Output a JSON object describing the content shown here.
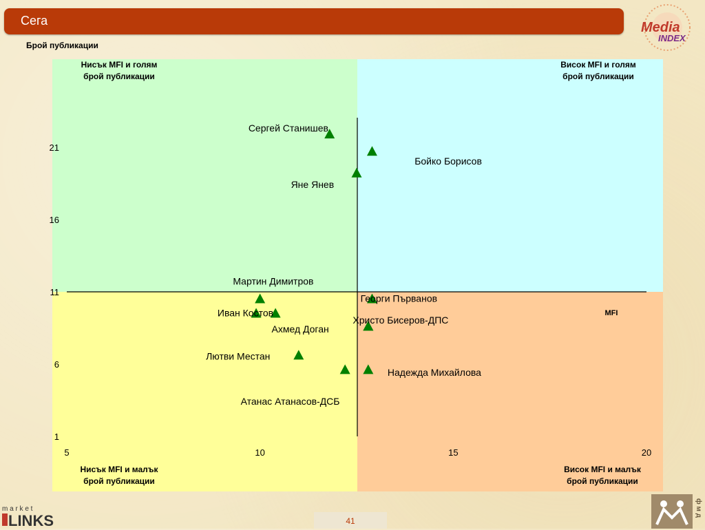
{
  "header": {
    "title": "Сега"
  },
  "axis_title": "Брой публикации",
  "quadrants": {
    "top_left": [
      "Нисък MFI и голям",
      "брой публикации"
    ],
    "top_right": [
      "Висок MFI и голям",
      "брой публикации"
    ],
    "bottom_left": [
      "Нисък MFI и малък",
      "брой публикации"
    ],
    "bottom_right": [
      "Висок MFI и малък",
      "брой публикации"
    ]
  },
  "colors": {
    "top_left": "#ccffcc",
    "top_right": "#ccffff",
    "bottom_left": "#ffff99",
    "bottom_right": "#ffcc99",
    "marker": "#008000",
    "accent": "#b93a08"
  },
  "page_number": "41",
  "logos": {
    "top_right": {
      "line1": "Media",
      "line2": "INDEX"
    },
    "bottom_left": {
      "small": "m a r k e t",
      "big": "LINKS"
    },
    "bottom_right": {
      "side": "ф м д"
    }
  },
  "chart_data": {
    "type": "scatter",
    "xlabel": "MFI",
    "ylabel": "Брой публикации",
    "xlim": [
      5,
      20
    ],
    "ylim": [
      1,
      25
    ],
    "xticks": [
      5,
      10,
      15,
      20
    ],
    "yticks": [
      1,
      6,
      11,
      16,
      21
    ],
    "x_divider": 12.5,
    "y_divider": 11,
    "grid": false,
    "points": [
      {
        "name": "Сергей Станишев",
        "x": 11.8,
        "y": 21.9
      },
      {
        "name": "Бойко Борисов",
        "x": 12.9,
        "y": 20.7
      },
      {
        "name": "Яне Янев",
        "x": 12.5,
        "y": 19.2
      },
      {
        "name": "Мартин Димитров",
        "x": 10.0,
        "y": 10.5
      },
      {
        "name": "Георги Първанов",
        "x": 12.9,
        "y": 10.5
      },
      {
        "name": "Иван Костов",
        "x": 9.9,
        "y": 9.5
      },
      {
        "name": "Иван Костов",
        "x": 10.4,
        "y": 9.5
      },
      {
        "name": "Христо Бисеров-ДПС",
        "x": 12.8,
        "y": 8.6
      },
      {
        "name": "Ахмед Доган",
        "x": 12.8,
        "y": 8.6
      },
      {
        "name": "Лютви Местан",
        "x": 11.0,
        "y": 6.6
      },
      {
        "name": "Надежда Михайлова",
        "x": 12.8,
        "y": 5.6
      },
      {
        "name": "Атанас Атанасов-ДСБ",
        "x": 12.2,
        "y": 5.6
      }
    ],
    "labels": [
      {
        "text": "Сергей Станишев",
        "x": 9.7,
        "y": 22.1
      },
      {
        "text": "Бойко Борисов",
        "x": 14.0,
        "y": 19.8
      },
      {
        "text": "Яне Янев",
        "x": 10.8,
        "y": 18.2
      },
      {
        "text": "Мартин Димитров",
        "x": 9.3,
        "y": 11.5
      },
      {
        "text": "Георги Първанов",
        "x": 12.6,
        "y": 10.3
      },
      {
        "text": "Иван Костов",
        "x": 8.9,
        "y": 9.3
      },
      {
        "text": "Христо Бисеров-ДПС",
        "x": 12.4,
        "y": 8.8
      },
      {
        "text": "Ахмед Доган",
        "x": 10.3,
        "y": 8.2
      },
      {
        "text": "Лютви Местан",
        "x": 8.6,
        "y": 6.3
      },
      {
        "text": "Надежда Михайлова",
        "x": 13.3,
        "y": 5.2
      },
      {
        "text": "Атанас Атанасов-ДСБ",
        "x": 9.5,
        "y": 3.2
      }
    ]
  }
}
